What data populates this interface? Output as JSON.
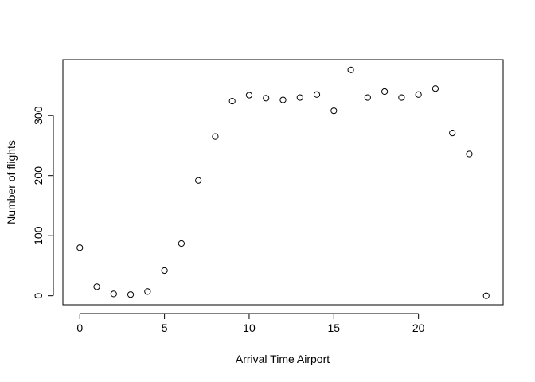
{
  "chart_data": {
    "type": "scatter",
    "title": "",
    "xlabel": "Arrival Time Airport",
    "ylabel": "Number of flights",
    "xlim": [
      -1,
      25
    ],
    "ylim": [
      -15,
      393
    ],
    "xticks": [
      0,
      5,
      10,
      15,
      20
    ],
    "yticks": [
      0,
      100,
      200,
      300
    ],
    "grid": false,
    "marker": "open-circle",
    "points": [
      {
        "x": 0,
        "y": 80
      },
      {
        "x": 1,
        "y": 15
      },
      {
        "x": 2,
        "y": 3
      },
      {
        "x": 3,
        "y": 2
      },
      {
        "x": 4,
        "y": 7
      },
      {
        "x": 5,
        "y": 42
      },
      {
        "x": 6,
        "y": 87
      },
      {
        "x": 7,
        "y": 192
      },
      {
        "x": 8,
        "y": 265
      },
      {
        "x": 9,
        "y": 324
      },
      {
        "x": 10,
        "y": 334
      },
      {
        "x": 11,
        "y": 329
      },
      {
        "x": 12,
        "y": 326
      },
      {
        "x": 13,
        "y": 330
      },
      {
        "x": 14,
        "y": 335
      },
      {
        "x": 15,
        "y": 308
      },
      {
        "x": 16,
        "y": 376
      },
      {
        "x": 17,
        "y": 330
      },
      {
        "x": 18,
        "y": 340
      },
      {
        "x": 19,
        "y": 330
      },
      {
        "x": 20,
        "y": 335
      },
      {
        "x": 21,
        "y": 345
      },
      {
        "x": 22,
        "y": 271
      },
      {
        "x": 23,
        "y": 236
      },
      {
        "x": 24,
        "y": 0
      }
    ]
  }
}
